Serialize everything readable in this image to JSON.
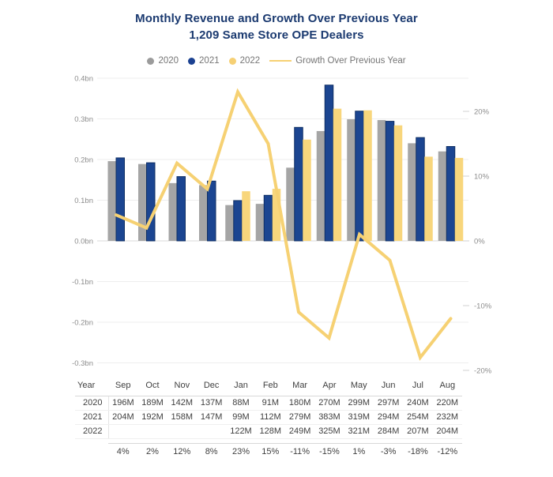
{
  "title": {
    "line1": "Monthly Revenue and Growth Over Previous Year",
    "line2": "1,209 Same Store OPE Dealers"
  },
  "legend": {
    "items": [
      {
        "label": "2020",
        "swatch": "dot",
        "color": "#9b9b9b"
      },
      {
        "label": "2021",
        "swatch": "dot",
        "color": "#1b4191"
      },
      {
        "label": "2022",
        "swatch": "dot",
        "color": "#f6d074"
      },
      {
        "label": "Growth Over Previous Year",
        "swatch": "line",
        "color": "#f6d173"
      }
    ]
  },
  "chart_data": {
    "type": "bar+line",
    "title": "Monthly Revenue and Growth Over Previous Year",
    "subtitle": "1,209 Same Store OPE Dealers",
    "categories": [
      "Sep",
      "Oct",
      "Nov",
      "Dec",
      "Jan",
      "Feb",
      "Mar",
      "Apr",
      "May",
      "Jun",
      "Jul",
      "Aug"
    ],
    "series": [
      {
        "name": "2020",
        "type": "bar",
        "color": "#a5a5a5",
        "values_millions": [
          196,
          189,
          142,
          137,
          88,
          91,
          180,
          270,
          299,
          297,
          240,
          220
        ]
      },
      {
        "name": "2021",
        "type": "bar",
        "color": "#1b4591",
        "border_color": "#0f2f63",
        "values_millions": [
          204,
          192,
          158,
          147,
          99,
          112,
          279,
          383,
          319,
          294,
          254,
          232
        ]
      },
      {
        "name": "2022",
        "type": "bar",
        "color": "#f8d67c",
        "values_millions": [
          null,
          null,
          null,
          null,
          122,
          128,
          249,
          325,
          321,
          284,
          207,
          204
        ]
      }
    ],
    "line_series": {
      "name": "Growth Over Previous Year",
      "type": "line",
      "color": "#f6d173",
      "values_percent": [
        4,
        2,
        12,
        8,
        23,
        15,
        -11,
        -15,
        1,
        -3,
        -18,
        -12
      ]
    },
    "left_axis": {
      "tick_labels": [
        "0.4bn",
        "0.3bn",
        "0.2bn",
        "0.1bn",
        "0.0bn",
        "-0.1bn",
        "-0.2bn",
        "-0.3bn"
      ],
      "tick_values_bn": [
        0.4,
        0.3,
        0.2,
        0.1,
        0.0,
        -0.1,
        -0.2,
        -0.3
      ],
      "range_bn": [
        -0.3,
        0.4
      ]
    },
    "right_axis": {
      "tick_labels": [
        "20%",
        "10%",
        "0%",
        "-10%",
        "-20%"
      ],
      "tick_values_percent": [
        20,
        10,
        0,
        -10,
        -20
      ],
      "range_percent": [
        -20,
        20
      ]
    },
    "grid": true,
    "legend_position": "top"
  },
  "table": {
    "header": [
      "Year",
      "Sep",
      "Oct",
      "Nov",
      "Dec",
      "Jan",
      "Feb",
      "Mar",
      "Apr",
      "May",
      "Jun",
      "Jul",
      "Aug"
    ],
    "rows": [
      {
        "label": "2020",
        "cells": [
          "196M",
          "189M",
          "142M",
          "137M",
          "88M",
          "91M",
          "180M",
          "270M",
          "299M",
          "297M",
          "240M",
          "220M"
        ]
      },
      {
        "label": "2021",
        "cells": [
          "204M",
          "192M",
          "158M",
          "147M",
          "99M",
          "112M",
          "279M",
          "383M",
          "319M",
          "294M",
          "254M",
          "232M"
        ]
      },
      {
        "label": "2022",
        "cells": [
          "",
          "",
          "",
          "",
          "122M",
          "128M",
          "249M",
          "325M",
          "321M",
          "284M",
          "207M",
          "204M"
        ]
      }
    ],
    "growth_row": {
      "label": "",
      "cells": [
        "4%",
        "2%",
        "12%",
        "8%",
        "23%",
        "15%",
        "-11%",
        "-15%",
        "1%",
        "-3%",
        "-18%",
        "-12%"
      ]
    }
  },
  "colors": {
    "title_text": "#1b3a70",
    "legend_text": "#757575",
    "axis_text": "#8c8c8c",
    "gridline": "#eeeeee",
    "zero_line": "#d8d8d8",
    "right_tick_dash": "#d0d0d0",
    "table_text": "#3f3f3f"
  }
}
